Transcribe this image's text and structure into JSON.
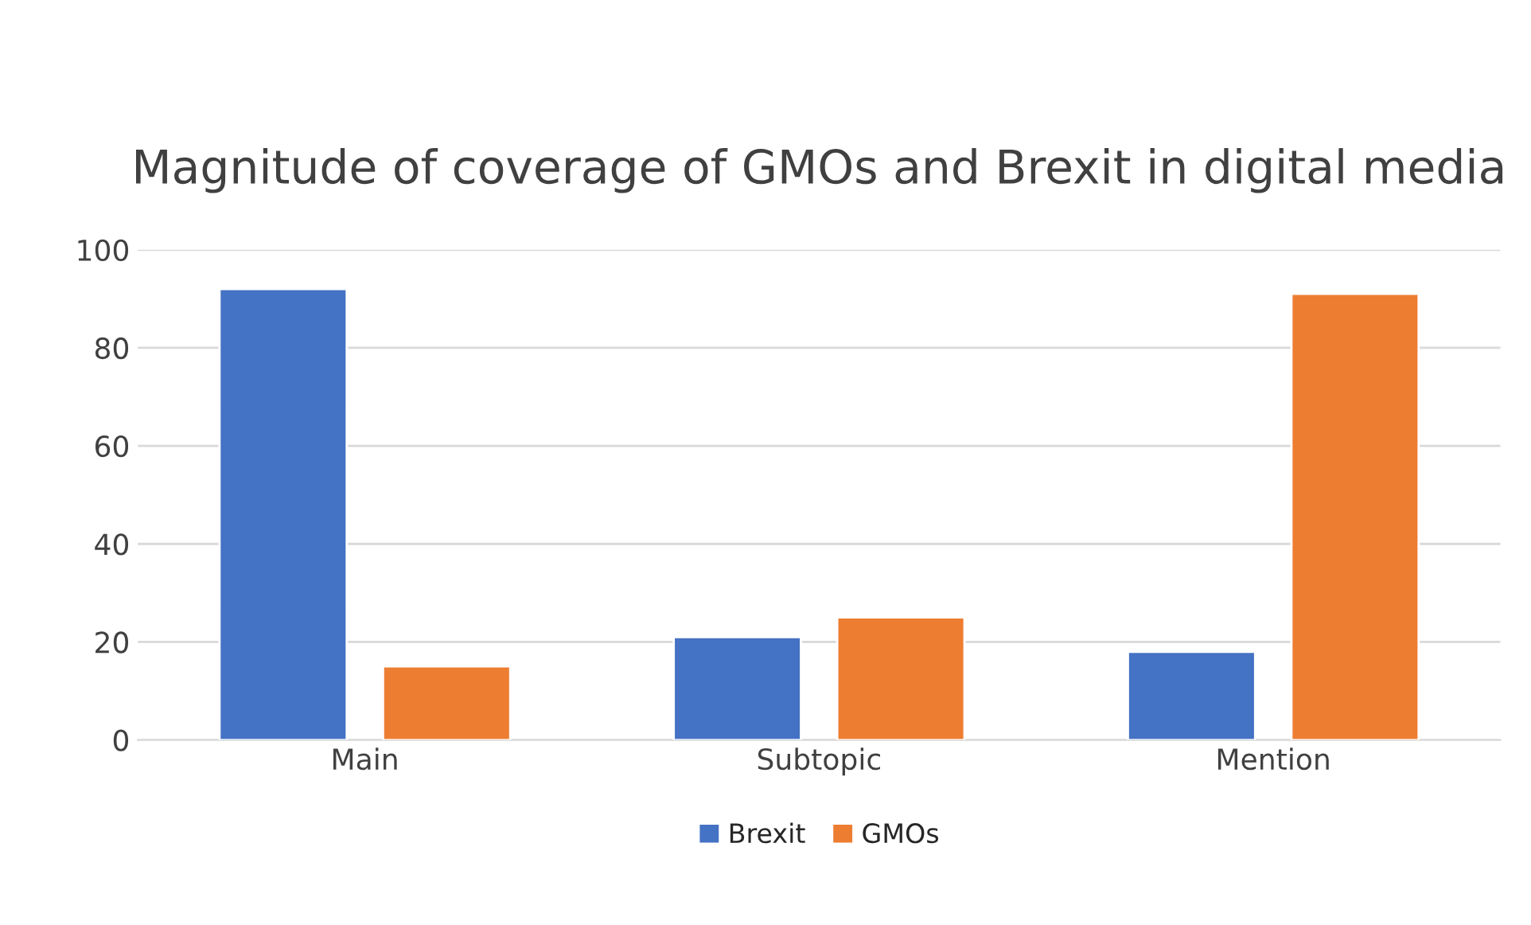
{
  "chart_data": {
    "type": "bar",
    "title": "Magnitude of coverage of GMOs and Brexit in digital media",
    "categories": [
      "Main",
      "Subtopic",
      "Mention"
    ],
    "series": [
      {
        "name": "Brexit",
        "color": "#4472c4",
        "values": [
          92,
          21,
          18
        ]
      },
      {
        "name": "GMOs",
        "color": "#ed7d31",
        "values": [
          15,
          25,
          91
        ]
      }
    ],
    "ylim": [
      0,
      100
    ],
    "yticks": [
      0,
      20,
      40,
      60,
      80,
      100
    ],
    "grid": "y",
    "legend": "bottom"
  }
}
